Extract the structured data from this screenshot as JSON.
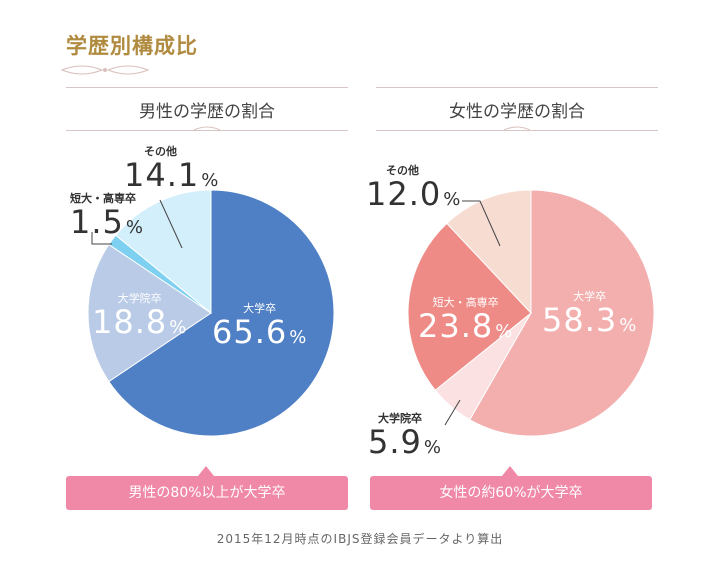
{
  "page": {
    "title": "学歴別構成比",
    "footnote": "2015年12月時点のIBJS登録会員データより算出"
  },
  "colors": {
    "title": "#b08a3e",
    "callout": "#f088a8"
  },
  "chart_data": [
    {
      "type": "pie",
      "title": "男性の学歴の割合",
      "callout": "男性の80%以上が大学卒",
      "slices": [
        {
          "label": "大学卒",
          "value": 65.6,
          "display": "65.6",
          "color": "#4f7fc4"
        },
        {
          "label": "大学院卒",
          "value": 18.8,
          "display": "18.8",
          "color": "#b9cbe6"
        },
        {
          "label": "短大・高専卒",
          "value": 1.5,
          "display": "1.5",
          "color": "#7ed0f0"
        },
        {
          "label": "その他",
          "value": 14.1,
          "display": "14.1",
          "color": "#d3effc"
        }
      ]
    },
    {
      "type": "pie",
      "title": "女性の学歴の割合",
      "callout": "女性の約60%が大学卒",
      "slices": [
        {
          "label": "大学卒",
          "value": 58.3,
          "display": "58.3",
          "color": "#f3aeae"
        },
        {
          "label": "大学院卒",
          "value": 5.9,
          "display": "5.9",
          "color": "#fbe1e1"
        },
        {
          "label": "短大・高専卒",
          "value": 23.8,
          "display": "23.8",
          "color": "#ef8b86"
        },
        {
          "label": "その他",
          "value": 12.0,
          "display": "12.0",
          "color": "#f7dcd2"
        }
      ]
    }
  ],
  "percent_sign": "%"
}
